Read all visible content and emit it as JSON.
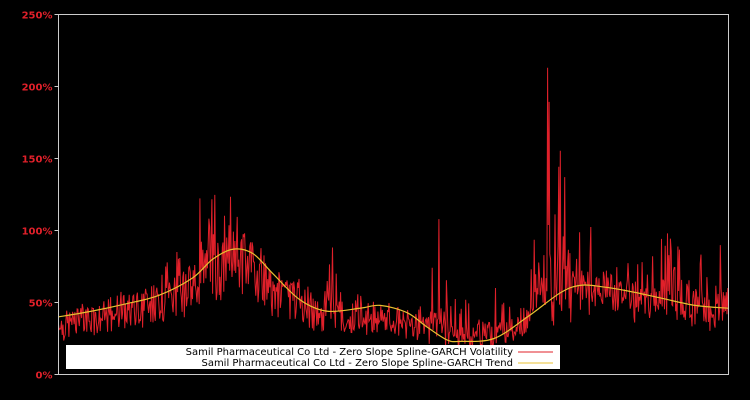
{
  "chart_data": {
    "type": "line",
    "title": "",
    "xlabel": "",
    "ylabel": "",
    "ylim": [
      0,
      250
    ],
    "y_ticks": [
      "0%",
      "50%",
      "100%",
      "150%",
      "200%",
      "250%"
    ],
    "y_tick_values": [
      0,
      50,
      100,
      150,
      200,
      250
    ],
    "grid": false,
    "background": "#000000",
    "legend_position": "bottom-center inside plot",
    "series": [
      {
        "name": "Samil Pharmaceutical Co Ltd - Zero Slope Spline-GARCH Volatility",
        "color": "#e0202a",
        "x_pct": [
          0,
          3,
          6,
          9,
          12,
          15,
          18,
          20,
          21,
          22,
          23,
          24,
          25,
          26,
          27,
          28,
          29,
          30,
          31,
          32,
          33,
          35,
          37,
          39,
          41,
          43,
          45,
          47,
          49,
          51,
          53,
          55,
          57,
          58,
          60,
          62,
          64,
          66,
          68,
          70,
          72,
          73,
          74,
          75,
          76,
          77,
          78,
          79,
          80,
          81,
          82,
          84,
          86,
          88,
          90,
          92,
          94,
          96,
          98,
          99,
          100
        ],
        "values": [
          30,
          50,
          45,
          60,
          55,
          70,
          90,
          75,
          135,
          110,
          145,
          100,
          120,
          145,
          95,
          105,
          80,
          95,
          70,
          55,
          60,
          65,
          70,
          40,
          95,
          30,
          62,
          25,
          45,
          30,
          40,
          55,
          135,
          60,
          50,
          65,
          90,
          55,
          55,
          45,
          160,
          215,
          110,
          165,
          185,
          120,
          95,
          130,
          80,
          80,
          70,
          90,
          80,
          78,
          95,
          110,
          65,
          90,
          60,
          105,
          85
        ]
      },
      {
        "name": "Samil Pharmaceutical Co Ltd - Zero Slope Spline-GARCH Trend",
        "color": "#e8c030",
        "x_pct": [
          0,
          5,
          10,
          15,
          20,
          23,
          26,
          29,
          32,
          36,
          40,
          45,
          48,
          52,
          55,
          58,
          60,
          65,
          70,
          75,
          78,
          81,
          85,
          90,
          95,
          100
        ],
        "values": [
          40,
          44,
          49,
          55,
          67,
          80,
          87,
          84,
          70,
          52,
          44,
          46,
          48,
          43,
          33,
          24,
          23,
          25,
          40,
          57,
          62,
          61,
          58,
          53,
          48,
          46
        ]
      }
    ]
  },
  "legend": {
    "items": [
      {
        "label": "Samil Pharmaceutical Co Ltd - Zero Slope Spline-GARCH Volatility",
        "color": "#e0202a"
      },
      {
        "label": "Samil Pharmaceutical Co Ltd - Zero Slope Spline-GARCH Trend",
        "color": "#e8c030"
      }
    ]
  },
  "colors": {
    "axis_text": "#e0202a",
    "frame": "#cccccc",
    "legend_bg": "#ffffff"
  }
}
